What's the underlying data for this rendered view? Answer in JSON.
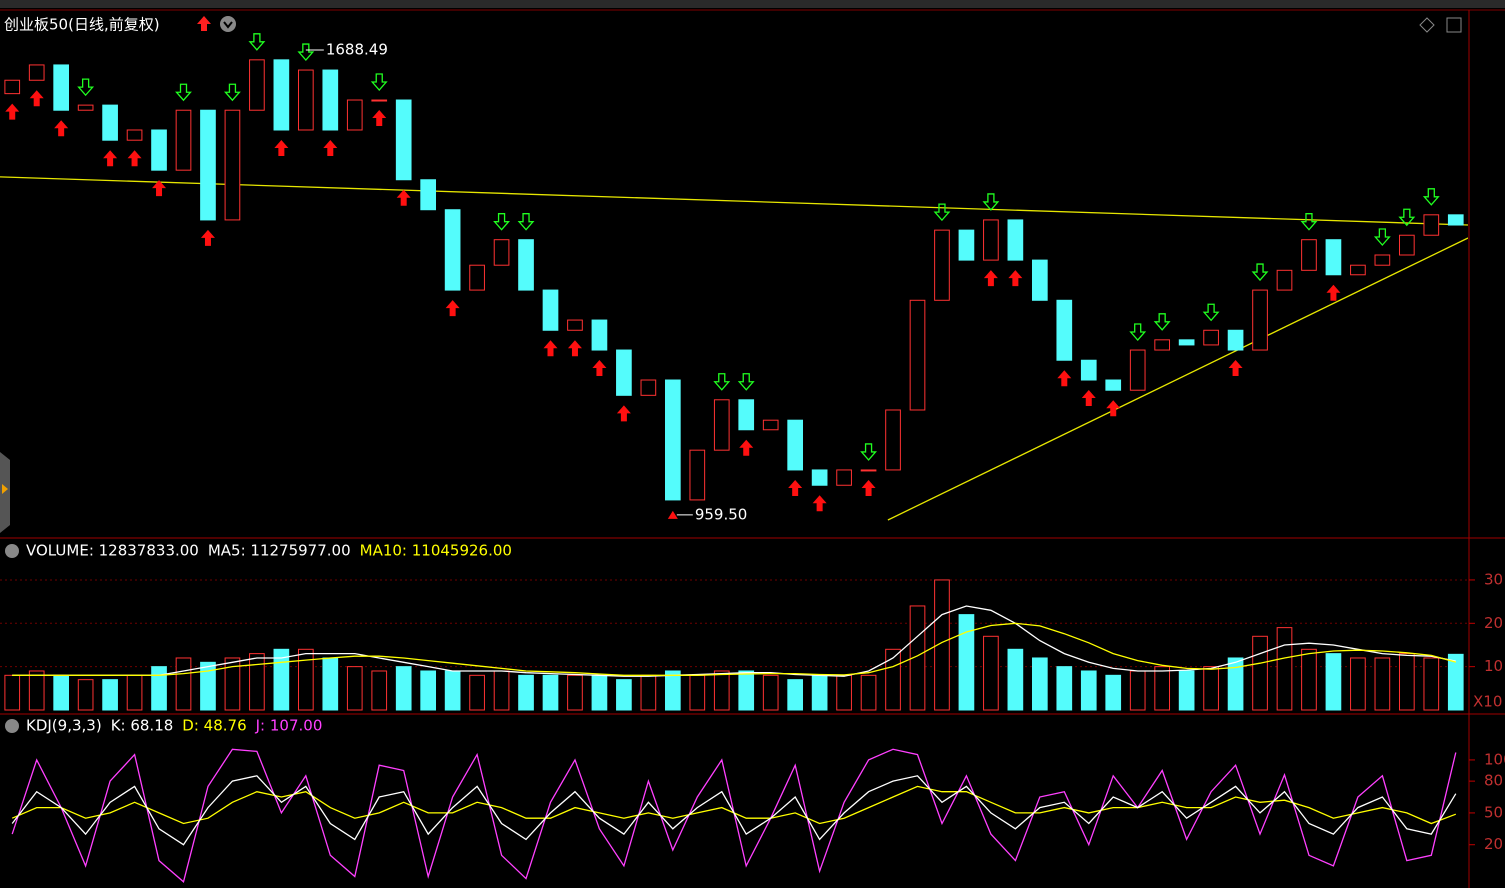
{
  "chart_data": [
    {
      "type": "candlestick",
      "title": "创业板50(日线,前复权)",
      "open": [
        1620,
        1641,
        1665,
        1594,
        1602,
        1547,
        1563,
        1500,
        1594,
        1422,
        1594,
        1673,
        1563,
        1657,
        1563,
        1610,
        1610,
        1485,
        1438,
        1312,
        1351,
        1391,
        1312,
        1249,
        1265,
        1218,
        1147,
        1171,
        983,
        1061,
        1140,
        1093,
        1108,
        1030,
        1006,
        1030,
        1030,
        1124,
        1296,
        1406,
        1359,
        1422,
        1359,
        1296,
        1202,
        1171,
        1155,
        1218,
        1234,
        1226,
        1249,
        1218,
        1312,
        1343,
        1391,
        1336,
        1351,
        1367,
        1398,
        1430
      ],
      "close": [
        1641,
        1665,
        1594,
        1602,
        1547,
        1563,
        1500,
        1594,
        1422,
        1594,
        1673,
        1563,
        1657,
        1563,
        1610,
        1610,
        1485,
        1438,
        1312,
        1351,
        1391,
        1312,
        1249,
        1265,
        1218,
        1147,
        1171,
        983,
        1061,
        1140,
        1093,
        1108,
        1030,
        1006,
        1030,
        1030,
        1124,
        1296,
        1406,
        1359,
        1422,
        1359,
        1296,
        1202,
        1171,
        1155,
        1218,
        1234,
        1226,
        1249,
        1218,
        1312,
        1343,
        1391,
        1336,
        1351,
        1367,
        1398,
        1430,
        1414
      ],
      "ylim": [
        928,
        1748
      ],
      "up_color": "#ff3232",
      "down_color": "#54fcfc",
      "high_label": {
        "index": 12,
        "value": 1688.49
      },
      "low_label": {
        "index": 27,
        "value": {
          "value": 959.5,
          "label": "959.50"
        }
      },
      "buy_signals": [
        0,
        1,
        2,
        4,
        5,
        6,
        8,
        11,
        13,
        15,
        16,
        18,
        22,
        23,
        24,
        25,
        30,
        32,
        33,
        35,
        40,
        41,
        43,
        44,
        45,
        50,
        54
      ],
      "sell_signals": [
        3,
        7,
        9,
        10,
        12,
        15,
        20,
        21,
        29,
        30,
        35,
        38,
        40,
        46,
        47,
        49,
        51,
        53,
        56,
        57,
        58
      ],
      "lines": [
        {
          "color": "#e6e600",
          "x": [
            -0.5,
            59.5
          ],
          "values": [
            1489.4,
            1414.1
          ]
        },
        {
          "color": "#e6e600",
          "x": [
            35.79,
            59.5
          ],
          "values": [
            951.5,
            1393.7
          ]
        }
      ]
    },
    {
      "type": "bar",
      "header": [
        {
          "text": "VOLUME: 12837833.00",
          "color": "#ffffff"
        },
        {
          "text": "MA5: 11275977.00",
          "color": "#ffffff"
        },
        {
          "text": "MA10: 11045926.00",
          "color": "#ffff00"
        }
      ],
      "values": [
        8,
        9,
        8,
        7,
        7,
        8,
        10,
        12,
        11,
        12,
        13,
        14,
        14,
        12,
        10,
        9,
        10,
        9,
        9,
        8,
        9,
        8,
        8,
        8,
        8,
        7,
        8,
        9,
        8,
        9,
        9,
        8,
        7,
        8,
        8,
        8,
        14,
        24,
        30,
        22,
        17,
        14,
        12,
        10,
        9,
        8,
        9,
        10,
        9,
        10,
        12,
        17,
        19,
        14,
        13,
        12,
        12,
        13,
        12,
        12.84
      ],
      "series": [
        {
          "color": "#ffffff",
          "values": [
            8,
            8,
            8,
            8,
            8,
            8,
            8,
            9,
            10,
            11,
            12,
            12,
            13,
            13,
            13,
            12,
            11,
            10,
            9,
            9,
            9,
            8.6,
            8.4,
            8.2,
            8,
            7.8,
            7.8,
            8,
            8.2,
            8.4,
            8.6,
            8.6,
            8.2,
            8,
            7.8,
            9,
            12,
            17,
            22,
            24,
            23,
            20,
            16,
            13,
            11,
            9.6,
            9,
            9,
            9.2,
            9.6,
            11,
            13,
            15,
            15.4,
            15,
            14,
            13,
            12.6,
            12.4,
            11.28
          ]
        },
        {
          "color": "#ffff00",
          "values": [
            8,
            8,
            8,
            8,
            8,
            8,
            8,
            8.4,
            9,
            10,
            10.5,
            11,
            11.5,
            12,
            12.4,
            12.4,
            12,
            11.4,
            10.8,
            10.2,
            9.6,
            9,
            8.8,
            8.6,
            8.3,
            8,
            8,
            8,
            8,
            8.2,
            8.3,
            8.4,
            8.4,
            8.2,
            8.1,
            8.6,
            10,
            12.5,
            15.6,
            18,
            19.5,
            20,
            19.4,
            17.6,
            15.5,
            13,
            11.4,
            10.3,
            9.6,
            9.4,
            9.8,
            10.8,
            12,
            13,
            13.6,
            13.8,
            13.6,
            13.2,
            12.6,
            11.05
          ]
        }
      ],
      "ylim": [
        0,
        34.6
      ],
      "yticks": [
        10,
        20,
        30
      ],
      "unit_label": "X10",
      "grid": true
    },
    {
      "type": "line",
      "header": [
        {
          "text": "KDJ(9,3,3)",
          "color": "#ffffff"
        },
        {
          "text": "K: 68.18",
          "color": "#ffffff"
        },
        {
          "text": "D: 48.76",
          "color": "#ffff00"
        },
        {
          "text": "J: 107.00",
          "color": "#ff40ff"
        }
      ],
      "series": [
        {
          "color": "#ffffff",
          "values": [
            40,
            70,
            55,
            30,
            60,
            75,
            35,
            20,
            55,
            80,
            85,
            60,
            75,
            40,
            25,
            65,
            70,
            30,
            55,
            75,
            40,
            25,
            50,
            70,
            45,
            30,
            60,
            35,
            55,
            70,
            30,
            45,
            65,
            25,
            50,
            70,
            80,
            85,
            60,
            75,
            50,
            35,
            55,
            60,
            40,
            65,
            55,
            70,
            45,
            60,
            75,
            50,
            70,
            40,
            30,
            55,
            65,
            35,
            30,
            68.18
          ]
        },
        {
          "color": "#ffff00",
          "values": [
            45,
            55,
            55,
            45,
            50,
            60,
            50,
            40,
            45,
            60,
            70,
            65,
            70,
            55,
            45,
            50,
            60,
            50,
            50,
            60,
            55,
            45,
            45,
            55,
            50,
            45,
            50,
            45,
            50,
            55,
            45,
            45,
            50,
            40,
            45,
            55,
            65,
            75,
            70,
            70,
            60,
            50,
            50,
            55,
            50,
            55,
            55,
            60,
            55,
            55,
            65,
            60,
            62,
            55,
            45,
            50,
            55,
            50,
            40,
            48.76
          ]
        },
        {
          "color": "#ff40ff",
          "values": [
            30,
            100,
            55,
            0,
            80,
            105,
            5,
            -15,
            75,
            110,
            108,
            50,
            85,
            10,
            -10,
            95,
            90,
            -10,
            65,
            105,
            10,
            -12,
            60,
            100,
            35,
            0,
            80,
            15,
            65,
            100,
            0,
            45,
            95,
            -5,
            60,
            100,
            110,
            105,
            40,
            85,
            30,
            5,
            65,
            70,
            20,
            85,
            55,
            90,
            25,
            70,
            95,
            30,
            86,
            10,
            0,
            65,
            85,
            5,
            10,
            107
          ]
        }
      ],
      "ylim": [
        -18,
        118.8
      ],
      "yticks": [
        20,
        50,
        80,
        100
      ]
    }
  ]
}
